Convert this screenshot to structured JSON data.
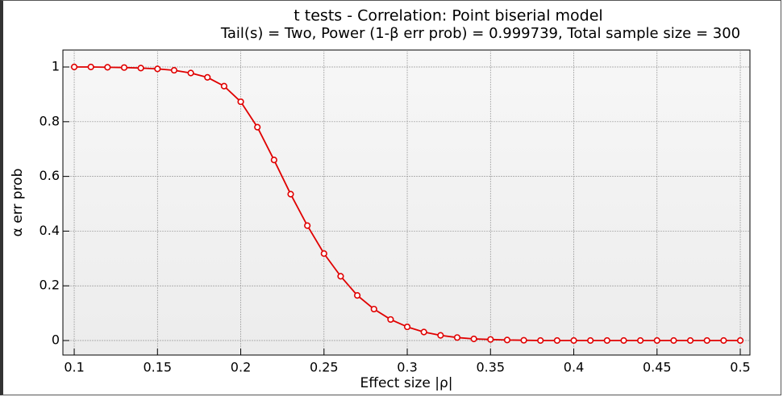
{
  "chart_data": {
    "type": "line",
    "title": "t tests - Correlation: Point biserial model",
    "subtitle": "Tail(s) = Two, Power (1-β err prob) = 0.999739, Total sample size = 300",
    "x_label": "Effect size |ρ|",
    "y_label": "α err prob",
    "x": [
      0.1,
      0.11,
      0.12,
      0.13,
      0.14,
      0.15,
      0.16,
      0.17,
      0.18,
      0.19,
      0.2,
      0.21,
      0.22,
      0.23,
      0.24,
      0.25,
      0.26,
      0.27,
      0.28,
      0.29,
      0.3,
      0.31,
      0.32,
      0.33,
      0.34,
      0.35,
      0.36,
      0.37,
      0.38,
      0.39,
      0.4,
      0.41,
      0.42,
      0.43,
      0.44,
      0.45,
      0.46,
      0.47,
      0.48,
      0.49,
      0.5
    ],
    "series": [
      {
        "color": "#e00000",
        "values": [
          1.0,
          1.0,
          0.999,
          0.998,
          0.996,
          0.993,
          0.988,
          0.978,
          0.962,
          0.93,
          0.873,
          0.78,
          0.66,
          0.535,
          0.42,
          0.318,
          0.235,
          0.165,
          0.115,
          0.077,
          0.05,
          0.031,
          0.019,
          0.011,
          0.006,
          0.004,
          0.002,
          0.001,
          0,
          0,
          0,
          0,
          0,
          0,
          0,
          0,
          0,
          0,
          0,
          0,
          0
        ]
      }
    ],
    "xlim": [
      0.0932,
      0.5058
    ],
    "ylim": [
      -0.053,
      1.062
    ],
    "xticks": [
      0.1,
      0.15,
      0.2,
      0.25,
      0.3,
      0.35,
      0.4,
      0.45,
      0.5
    ],
    "yticks": [
      0,
      0.2,
      0.4,
      0.6,
      0.8,
      1
    ],
    "grid": true
  }
}
